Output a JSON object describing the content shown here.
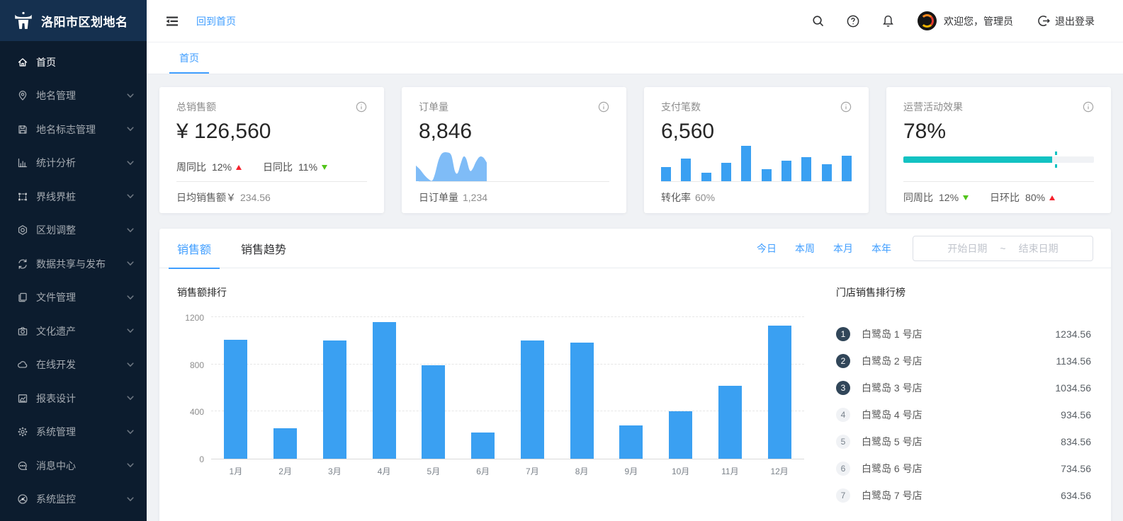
{
  "app": {
    "title": "洛阳市区划地名"
  },
  "header": {
    "back_link": "回到首页",
    "welcome": "欢迎您，管理员",
    "logout": "退出登录"
  },
  "tabbar": {
    "tabs": [
      {
        "label": "首页",
        "active": true
      }
    ]
  },
  "sidebar": {
    "items": [
      {
        "icon": "home-icon",
        "label": "首页",
        "active": true,
        "expandable": false
      },
      {
        "icon": "location-icon",
        "label": "地名管理",
        "active": false,
        "expandable": true
      },
      {
        "icon": "save-icon",
        "label": "地名标志管理",
        "active": false,
        "expandable": true
      },
      {
        "icon": "bar-chart-icon",
        "label": "统计分析",
        "active": false,
        "expandable": true
      },
      {
        "icon": "selection-icon",
        "label": "界线界桩",
        "active": false,
        "expandable": true
      },
      {
        "icon": "badge-icon",
        "label": "区划调整",
        "active": false,
        "expandable": true
      },
      {
        "icon": "sync-icon",
        "label": "数据共享与发布",
        "active": false,
        "expandable": true
      },
      {
        "icon": "files-icon",
        "label": "文件管理",
        "active": false,
        "expandable": true
      },
      {
        "icon": "camera-icon",
        "label": "文化遗产",
        "active": false,
        "expandable": true
      },
      {
        "icon": "cloud-icon",
        "label": "在线开发",
        "active": false,
        "expandable": true
      },
      {
        "icon": "report-icon",
        "label": "报表设计",
        "active": false,
        "expandable": true
      },
      {
        "icon": "gear-icon",
        "label": "系统管理",
        "active": false,
        "expandable": true
      },
      {
        "icon": "message-icon",
        "label": "消息中心",
        "active": false,
        "expandable": true
      },
      {
        "icon": "monitor-icon",
        "label": "系统监控",
        "active": false,
        "expandable": true
      }
    ]
  },
  "stat_cards": {
    "sales": {
      "title": "总销售额",
      "value": "¥ 126,560",
      "trends": [
        {
          "label": "周同比",
          "value": "12%",
          "dir": "up"
        },
        {
          "label": "日同比",
          "value": "11%",
          "dir": "down"
        }
      ],
      "footer_label": "日均销售额￥",
      "footer_value": "234.56"
    },
    "orders": {
      "title": "订单量",
      "value": "8,846",
      "footer_label": "日订单量",
      "footer_value": "1,234"
    },
    "payments": {
      "title": "支付笔数",
      "value": "6,560",
      "footer_label": "转化率",
      "footer_value": "60%"
    },
    "activity": {
      "title": "运营活动效果",
      "value": "78%",
      "progress_percent": 78,
      "target_percent": 80,
      "trends": [
        {
          "label": "同周比",
          "value": "12%",
          "dir": "down"
        },
        {
          "label": "日环比",
          "value": "80%",
          "dir": "up"
        }
      ]
    }
  },
  "panel": {
    "tabs": [
      {
        "label": "销售额",
        "active": true
      },
      {
        "label": "销售趋势",
        "active": false
      }
    ],
    "filters": [
      "今日",
      "本周",
      "本月",
      "本年"
    ],
    "date_range": {
      "start_placeholder": "开始日期",
      "separator": "~",
      "end_placeholder": "结束日期"
    },
    "ranking": {
      "title": "门店销售排行榜",
      "items": [
        {
          "rank": "1",
          "name": "白鹭岛 1 号店",
          "value": "1234.56"
        },
        {
          "rank": "2",
          "name": "白鹭岛 2 号店",
          "value": "1134.56"
        },
        {
          "rank": "3",
          "name": "白鹭岛 3 号店",
          "value": "1034.56"
        },
        {
          "rank": "4",
          "name": "白鹭岛 4 号店",
          "value": "934.56"
        },
        {
          "rank": "5",
          "name": "白鹭岛 5 号店",
          "value": "834.56"
        },
        {
          "rank": "6",
          "name": "白鹭岛 6 号店",
          "value": "734.56"
        },
        {
          "rank": "7",
          "name": "白鹭岛 7 号店",
          "value": "634.56"
        }
      ]
    }
  },
  "chart_data": [
    {
      "type": "bar",
      "title": "销售额排行",
      "categories": [
        "1月",
        "2月",
        "3月",
        "4月",
        "5月",
        "6月",
        "7月",
        "8月",
        "9月",
        "10月",
        "11月",
        "12月"
      ],
      "values": [
        1010,
        260,
        1000,
        1160,
        790,
        220,
        1000,
        985,
        280,
        400,
        620,
        1130
      ],
      "xlabel": "",
      "ylabel": "",
      "ylim": [
        0,
        1200
      ],
      "yticks": [
        0,
        400,
        800,
        1200
      ],
      "grid": "dashed-horizontal",
      "legend": "none",
      "bar_color": "#3AA0F2"
    },
    {
      "type": "area",
      "name": "orders-sparkline",
      "x": [
        0,
        6,
        12,
        18,
        23,
        27,
        32,
        37,
        44,
        50,
        55,
        59,
        63,
        67,
        71,
        76,
        80,
        85,
        90,
        95,
        100
      ],
      "values": [
        46,
        34,
        18,
        6,
        2,
        22,
        62,
        82,
        85,
        76,
        30,
        24,
        50,
        72,
        66,
        32,
        36,
        58,
        72,
        70,
        55
      ],
      "color": "#7FBCF7"
    },
    {
      "type": "bar",
      "name": "payments-sparkline",
      "values": [
        40,
        65,
        25,
        52,
        100,
        35,
        58,
        68,
        48,
        72
      ],
      "color": "#3AA0F2"
    }
  ],
  "colors": {
    "accent_blue": "#409EFF",
    "bar_blue": "#3AA0F2",
    "area_blue": "#7FBCF7",
    "teal": "#13C2C2",
    "up_red": "#F5222D",
    "down_green": "#52C41A",
    "sidebar_bg": "#0C1C2E",
    "logo_bg": "#15304F",
    "rank_badge_dark": "#314659"
  }
}
